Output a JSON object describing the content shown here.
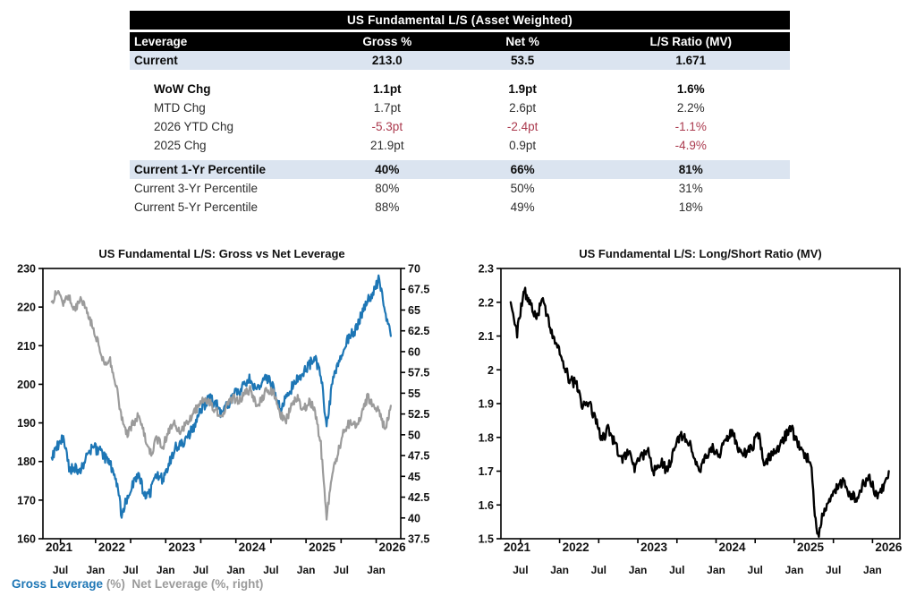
{
  "table": {
    "title": "US Fundamental L/S (Asset Weighted)",
    "columns": [
      "Leverage",
      "Gross %",
      "Net %",
      "L/S Ratio (MV)"
    ],
    "rows": [
      {
        "label": "Current",
        "values": [
          "213.0",
          "53.5",
          "1.671"
        ]
      },
      {
        "label": "WoW Chg",
        "values": [
          "1.1pt",
          "1.9pt",
          "1.6%"
        ]
      },
      {
        "label": "MTD Chg",
        "values": [
          "1.7pt",
          "2.6pt",
          "2.2%"
        ]
      },
      {
        "label": "2026 YTD Chg",
        "values": [
          "-5.3pt",
          "-2.4pt",
          "-1.1%"
        ]
      },
      {
        "label": "2025 Chg",
        "values": [
          "21.9pt",
          "0.9pt",
          "-4.9%"
        ]
      },
      {
        "label": "Current 1-Yr Percentile",
        "values": [
          "40%",
          "66%",
          "81%"
        ]
      },
      {
        "label": "Current 3-Yr Percentile",
        "values": [
          "80%",
          "50%",
          "31%"
        ]
      },
      {
        "label": "Current 5-Yr Percentile",
        "values": [
          "88%",
          "49%",
          "18%"
        ]
      }
    ],
    "colors": {
      "header_bg": "#000000",
      "highlight_bg": "#dbe4f0",
      "negative_text": "#ab3a4e"
    }
  },
  "chart_data": [
    {
      "type": "line",
      "title": "US Fundamental L/S: Gross vs Net Leverage",
      "x_axis": {
        "min": 2021.25,
        "max": 2026.35,
        "minor_ticks": [
          2021.5,
          2022,
          2022.5,
          2023,
          2023.5,
          2024,
          2024.5,
          2025,
          2025.5,
          2026
        ],
        "minor_labels": [
          "Jul",
          "Jan",
          "Jul",
          "Jan",
          "Jul",
          "Jan",
          "Jul",
          "Jan",
          "Jul",
          "Jan"
        ],
        "year_ticks": [
          2021,
          2022,
          2023,
          2024,
          2025,
          2026
        ],
        "year_labels": [
          "2021",
          "2022",
          "2023",
          "2024",
          "2025",
          "2026"
        ]
      },
      "y_left": {
        "min": 160,
        "max": 230,
        "tick_values": [
          230,
          220,
          210,
          200,
          190,
          180,
          170,
          160
        ],
        "tick_labels": [
          "230",
          "220",
          "210",
          "200",
          "190",
          "180",
          "170",
          "160"
        ]
      },
      "y_right": {
        "min": 37.5,
        "max": 70,
        "tick_values": [
          70,
          67.5,
          65,
          62.5,
          60,
          57.5,
          55,
          52.5,
          50,
          47.5,
          45,
          42.5,
          40,
          37.5
        ],
        "tick_labels": [
          "70",
          "67.5",
          "65",
          "62.5",
          "60",
          "57.5",
          "55",
          "52.5",
          "50",
          "47.5",
          "45",
          "42.5",
          "40",
          "37.5"
        ]
      },
      "series": [
        {
          "name": "Gross Leverage (%)",
          "axis": "left",
          "color": "#1d76b5",
          "x_start": 2021.375,
          "x_step": 0.083333,
          "values": [
            181,
            184,
            186,
            178,
            178.5,
            177.5,
            181.5,
            183.5,
            183,
            181,
            179.5,
            175.5,
            166,
            171.5,
            174.5,
            176,
            170.5,
            172.5,
            176.5,
            175.5,
            179,
            183.5,
            184,
            186,
            188,
            191.5,
            194.5,
            196.5,
            195,
            192.5,
            194.5,
            197,
            198,
            200,
            201.5,
            198.5,
            200.5,
            201.5,
            199,
            193.5,
            196,
            199,
            201,
            203,
            205,
            206.5,
            203.5,
            188.5,
            200,
            205,
            209.5,
            212.5,
            214,
            218.5,
            221.5,
            224,
            227,
            219,
            212.5
          ]
        },
        {
          "name": "Net Leverage (%, right)",
          "axis": "right",
          "color": "#9b9b9b",
          "x_start": 2021.375,
          "x_step": 0.083333,
          "values": [
            66,
            67.5,
            66,
            66.5,
            65,
            66.5,
            65,
            63,
            61,
            58.5,
            59,
            56,
            52,
            50,
            51.5,
            52.5,
            49.5,
            47.8,
            49.5,
            48.5,
            50.5,
            51.5,
            50,
            51.5,
            52,
            53.5,
            54.5,
            54,
            53,
            52,
            53.5,
            54.5,
            54,
            55,
            55.5,
            53.5,
            54.5,
            55.5,
            55,
            52.5,
            51.5,
            53.5,
            54.5,
            53,
            54,
            53,
            49,
            40,
            45.5,
            48,
            50.5,
            51.5,
            51,
            52.5,
            54.5,
            53.5,
            53,
            50.5,
            53.5
          ]
        }
      ],
      "legend": [
        {
          "label": "Gross Leverage",
          "suffix": " (%)",
          "color": "#1d76b5"
        },
        {
          "label": "Net Leverage (%, right)",
          "color": "#9b9b9b"
        }
      ]
    },
    {
      "type": "line",
      "title": "US Fundamental L/S: Long/Short Ratio (MV)",
      "x_axis": {
        "min": 2021.25,
        "max": 2026.35,
        "minor_ticks": [
          2021.5,
          2022,
          2022.5,
          2023,
          2023.5,
          2024,
          2024.5,
          2025,
          2025.5,
          2026
        ],
        "minor_labels": [
          "Jul",
          "Jan",
          "Jul",
          "Jan",
          "Jul",
          "Jan",
          "Jul",
          "Jan",
          "Jul",
          "Jan"
        ],
        "year_ticks": [
          2021,
          2022,
          2023,
          2024,
          2025,
          2026
        ],
        "year_labels": [
          "2021",
          "2022",
          "2023",
          "2024",
          "2025",
          "2026"
        ]
      },
      "y_left": {
        "min": 1.5,
        "max": 2.3,
        "tick_values": [
          2.3,
          2.2,
          2.1,
          2,
          1.9,
          1.8,
          1.7,
          1.6,
          1.5
        ],
        "tick_labels": [
          "2.3",
          "2.2",
          "2.1",
          "2",
          "1.9",
          "1.8",
          "1.7",
          "1.6",
          "1.5"
        ]
      },
      "series": [
        {
          "name": "Long/Short Ratio (MV)",
          "axis": "left",
          "color": "#000000",
          "x_start": 2021.375,
          "x_step": 0.083333,
          "values": [
            2.2,
            2.11,
            2.24,
            2.19,
            2.16,
            2.21,
            2.13,
            2.08,
            2.02,
            1.97,
            1.96,
            1.89,
            1.91,
            1.85,
            1.79,
            1.83,
            1.78,
            1.73,
            1.76,
            1.71,
            1.74,
            1.76,
            1.7,
            1.73,
            1.7,
            1.76,
            1.81,
            1.8,
            1.75,
            1.7,
            1.74,
            1.77,
            1.75,
            1.79,
            1.82,
            1.76,
            1.75,
            1.77,
            1.81,
            1.72,
            1.75,
            1.77,
            1.8,
            1.83,
            1.78,
            1.75,
            1.73,
            1.5,
            1.58,
            1.61,
            1.65,
            1.67,
            1.63,
            1.62,
            1.66,
            1.68,
            1.63,
            1.65,
            1.7
          ]
        }
      ]
    }
  ]
}
